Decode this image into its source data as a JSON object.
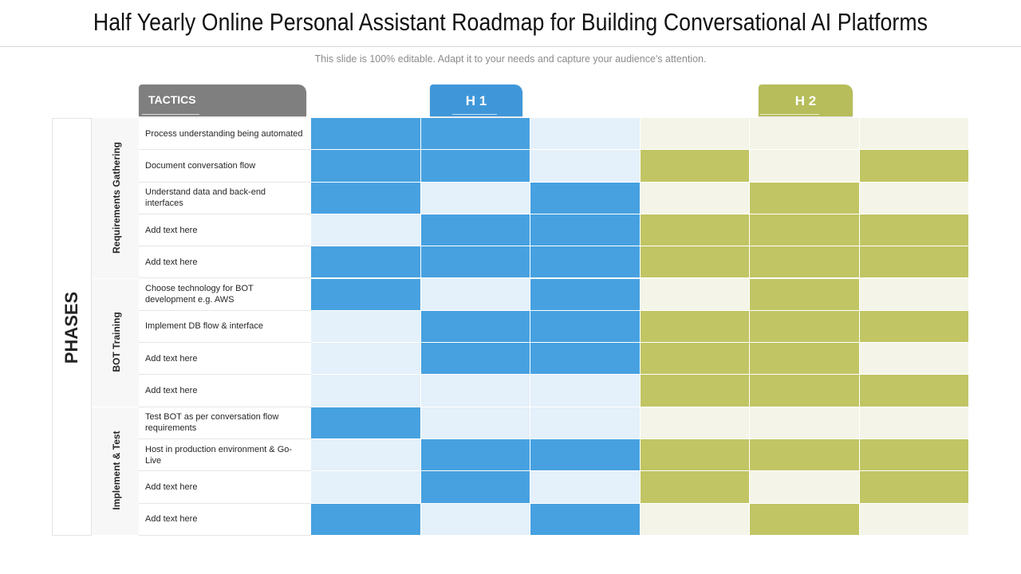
{
  "title": "Half Yearly Online Personal Assistant Roadmap for Building Conversational AI Platforms",
  "subtitle": "This slide is 100% editable. Adapt it to your needs and capture your audience's attention.",
  "headers": {
    "tactics": "TACTICS",
    "h1": "H 1",
    "h2": "H 2"
  },
  "phases_label": "PHASES",
  "colors": {
    "h1_active": "#47a1e0",
    "h1_inactive": "#e4f0fa",
    "h2_active": "#c1c564",
    "h2_inactive": "#f4f5e8",
    "tactics_tab": "#7f7f7f"
  },
  "phases": [
    {
      "name": "Requirements Gathering",
      "rows": 5
    },
    {
      "name": "BOT Training",
      "rows": 4
    },
    {
      "name": "Implement & Test",
      "rows": 4
    }
  ],
  "tactics": [
    {
      "label": "Process understanding being automated",
      "h1": [
        1,
        1,
        0
      ],
      "h2": [
        0,
        0,
        0
      ]
    },
    {
      "label": "Document conversation flow",
      "h1": [
        1,
        1,
        0
      ],
      "h2": [
        1,
        0,
        1
      ]
    },
    {
      "label": "Understand data and back-end interfaces",
      "h1": [
        1,
        0,
        1
      ],
      "h2": [
        0,
        1,
        0
      ]
    },
    {
      "label": "Add text here",
      "h1": [
        0,
        1,
        1
      ],
      "h2": [
        1,
        1,
        1
      ]
    },
    {
      "label": "Add text here",
      "h1": [
        1,
        1,
        1
      ],
      "h2": [
        1,
        1,
        1
      ]
    },
    {
      "label": "Choose technology for BOT development e.g. AWS",
      "h1": [
        1,
        0,
        1
      ],
      "h2": [
        0,
        1,
        0
      ]
    },
    {
      "label": "Implement DB flow  & interface",
      "h1": [
        0,
        1,
        1
      ],
      "h2": [
        1,
        1,
        1
      ]
    },
    {
      "label": "Add text here",
      "h1": [
        0,
        1,
        1
      ],
      "h2": [
        1,
        1,
        0
      ]
    },
    {
      "label": "Add text here",
      "h1": [
        0,
        0,
        0
      ],
      "h2": [
        1,
        1,
        1
      ]
    },
    {
      "label": "Test BOT as per conversation flow requirements",
      "h1": [
        1,
        0,
        0
      ],
      "h2": [
        0,
        0,
        0
      ]
    },
    {
      "label": "Host in production environment & Go-Live",
      "h1": [
        0,
        1,
        1
      ],
      "h2": [
        1,
        1,
        1
      ]
    },
    {
      "label": "Add text here",
      "h1": [
        0,
        1,
        0
      ],
      "h2": [
        1,
        0,
        1
      ]
    },
    {
      "label": "Add text here",
      "h1": [
        1,
        0,
        1
      ],
      "h2": [
        0,
        1,
        0
      ]
    }
  ]
}
